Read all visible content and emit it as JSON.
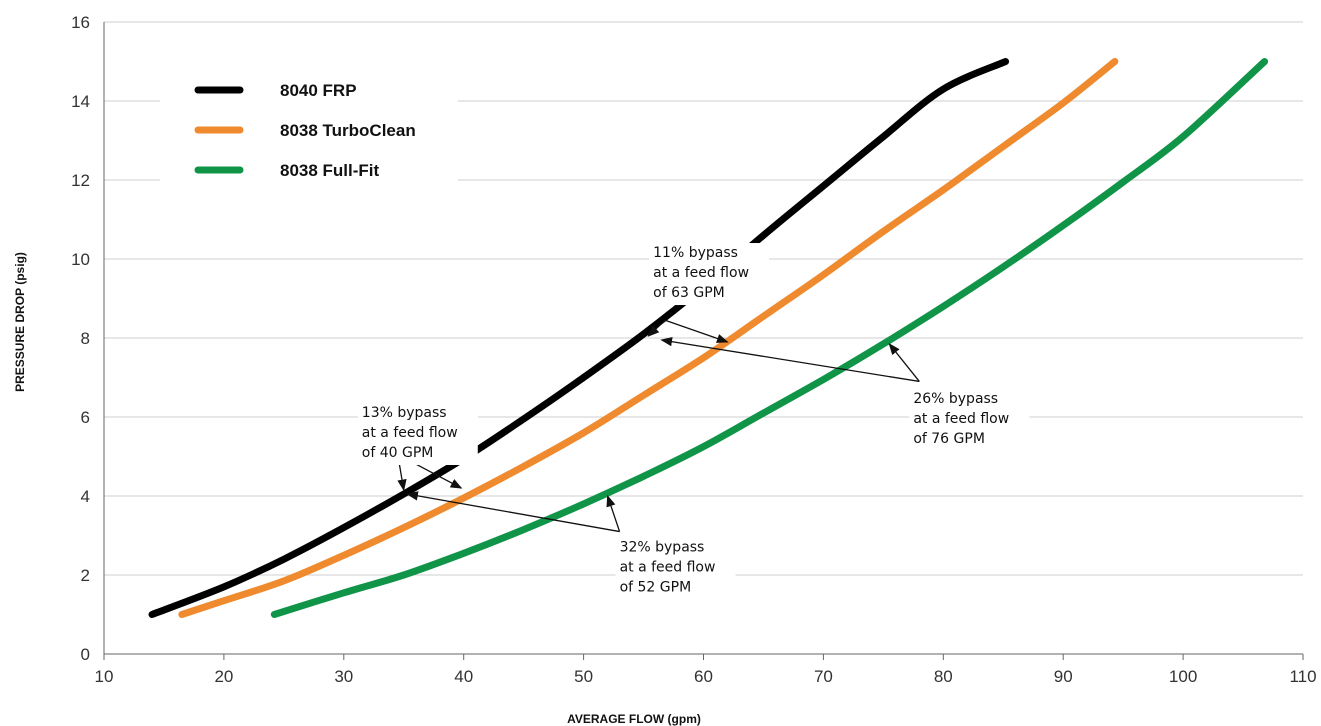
{
  "chart_data": {
    "type": "line",
    "title": "",
    "xlabel": "AVERAGE FLOW (gpm)",
    "ylabel": "PRESSURE DROP (psig)",
    "xlim": [
      10,
      110
    ],
    "ylim": [
      0,
      16
    ],
    "xticks": [
      10,
      20,
      30,
      40,
      50,
      60,
      70,
      80,
      90,
      100,
      110
    ],
    "yticks": [
      0,
      2,
      4,
      6,
      8,
      10,
      12,
      14,
      16
    ],
    "grid": "horizontal",
    "legend_position": "top-left",
    "series": [
      {
        "name": "8040 FRP",
        "color": "#000000",
        "x": [
          14,
          20,
          25,
          30,
          35,
          40,
          45,
          50,
          55,
          60,
          65,
          70,
          75,
          80,
          85.2
        ],
        "y": [
          1.0,
          1.7,
          2.4,
          3.2,
          4.05,
          4.95,
          5.95,
          7.0,
          8.1,
          9.3,
          10.6,
          11.85,
          13.1,
          14.3,
          15.0
        ]
      },
      {
        "name": "8038 TurboClean",
        "color": "#ef8a2e",
        "x": [
          16.5,
          20,
          25,
          30,
          35,
          40,
          45,
          50,
          55,
          60,
          65,
          70,
          75,
          80,
          85,
          90,
          94.3
        ],
        "y": [
          1.0,
          1.35,
          1.85,
          2.5,
          3.2,
          3.95,
          4.75,
          5.6,
          6.55,
          7.5,
          8.55,
          9.6,
          10.7,
          11.75,
          12.85,
          13.95,
          15.0
        ]
      },
      {
        "name": "8038 Full-Fit",
        "color": "#0f9448",
        "x": [
          24.2,
          30,
          35,
          40,
          45,
          50,
          55,
          60,
          65,
          70,
          75,
          80,
          85,
          90,
          95,
          100,
          106.8
        ],
        "y": [
          1.0,
          1.55,
          2.0,
          2.55,
          3.15,
          3.8,
          4.5,
          5.25,
          6.1,
          6.95,
          7.85,
          8.8,
          9.8,
          10.85,
          11.95,
          13.1,
          15.0
        ]
      }
    ],
    "annotations": [
      {
        "lines": [
          "11% bypass",
          "at a feed flow",
          "of 63 GPM"
        ],
        "text_anchor": [
          55.8,
          10.05
        ],
        "arrows": [
          {
            "from": [
              56.8,
              8.45
            ],
            "to": [
              55.4,
              8.05
            ]
          },
          {
            "from": [
              56.8,
              8.45
            ],
            "to": [
              62.0,
              7.9
            ]
          }
        ]
      },
      {
        "lines": [
          "26% bypass",
          "at a feed flow",
          "of 76 GPM"
        ],
        "text_anchor": [
          77.5,
          6.35
        ],
        "arrows": [
          {
            "from": [
              78.0,
              6.9
            ],
            "to": [
              56.5,
              7.95
            ]
          },
          {
            "from": [
              78.0,
              6.9
            ],
            "to": [
              75.5,
              7.85
            ]
          }
        ]
      },
      {
        "lines": [
          "13% bypass",
          "at a feed flow",
          "of 40 GPM"
        ],
        "text_anchor": [
          31.5,
          6.0
        ],
        "arrows": [
          {
            "from": [
              34.5,
              5.05
            ],
            "to": [
              35.0,
              4.15
            ]
          },
          {
            "from": [
              34.5,
              5.05
            ],
            "to": [
              39.8,
              4.2
            ]
          }
        ]
      },
      {
        "lines": [
          "32% bypass",
          "at a feed flow",
          "of 52 GPM"
        ],
        "text_anchor": [
          53.0,
          2.6
        ],
        "arrows": [
          {
            "from": [
              53.0,
              3.1
            ],
            "to": [
              35.3,
              4.05
            ]
          },
          {
            "from": [
              53.0,
              3.1
            ],
            "to": [
              52.0,
              4.0
            ]
          }
        ]
      }
    ]
  }
}
